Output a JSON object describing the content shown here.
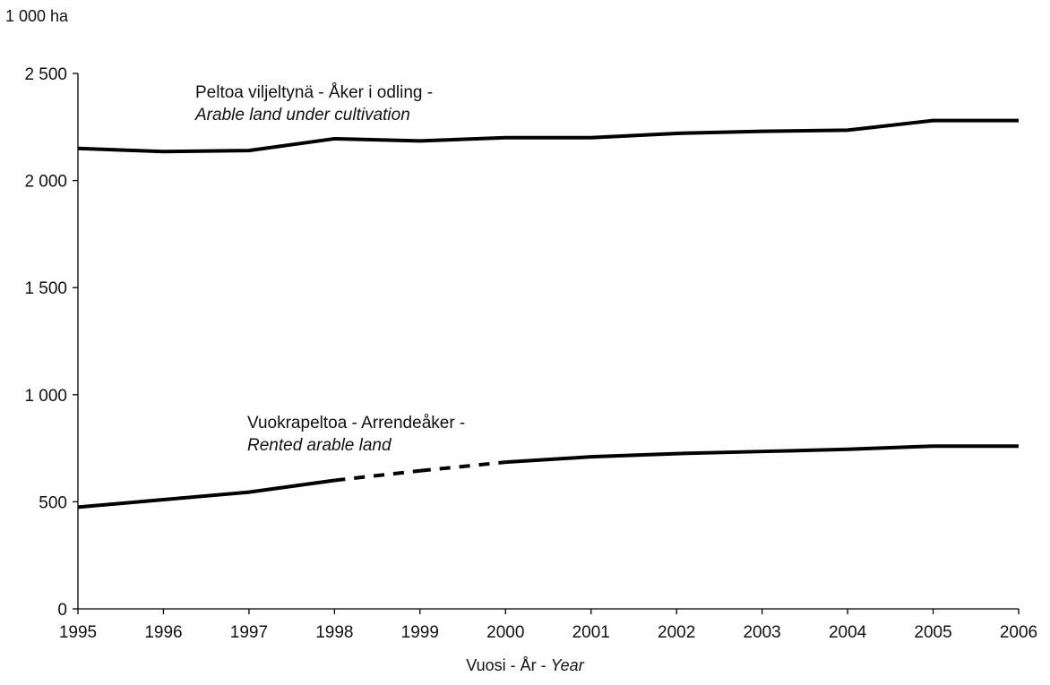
{
  "chart_data": {
    "type": "line",
    "y_unit": "1 000 ha",
    "xlabel_parts": [
      "Vuosi - År - ",
      "Year"
    ],
    "x": [
      1995,
      1996,
      1997,
      1998,
      1999,
      2000,
      2001,
      2002,
      2003,
      2004,
      2005,
      2006
    ],
    "ylim": [
      0,
      2500
    ],
    "yticks": [
      0,
      500,
      1000,
      1500,
      2000,
      2500
    ],
    "ytick_labels": [
      "0",
      "500",
      "1 000",
      "1 500",
      "2 000",
      "2 500"
    ],
    "grid": false,
    "legend": "none",
    "series": [
      {
        "name_parts": [
          "Peltoa viljeltynä - Åker i odling -",
          "Arable land under cultivation"
        ],
        "values": [
          2150,
          2135,
          2140,
          2195,
          2185,
          2200,
          2200,
          2220,
          2230,
          2235,
          2280,
          2280
        ],
        "dashed_between": [],
        "color": "#000000"
      },
      {
        "name_parts": [
          "Vuokrapeltoa - Arrendeåker -",
          "Rented arable land"
        ],
        "values": [
          475,
          510,
          545,
          600,
          645,
          685,
          710,
          725,
          735,
          745,
          760,
          760
        ],
        "dashed_between": [
          [
            1998,
            2000
          ]
        ],
        "color": "#000000"
      }
    ]
  }
}
